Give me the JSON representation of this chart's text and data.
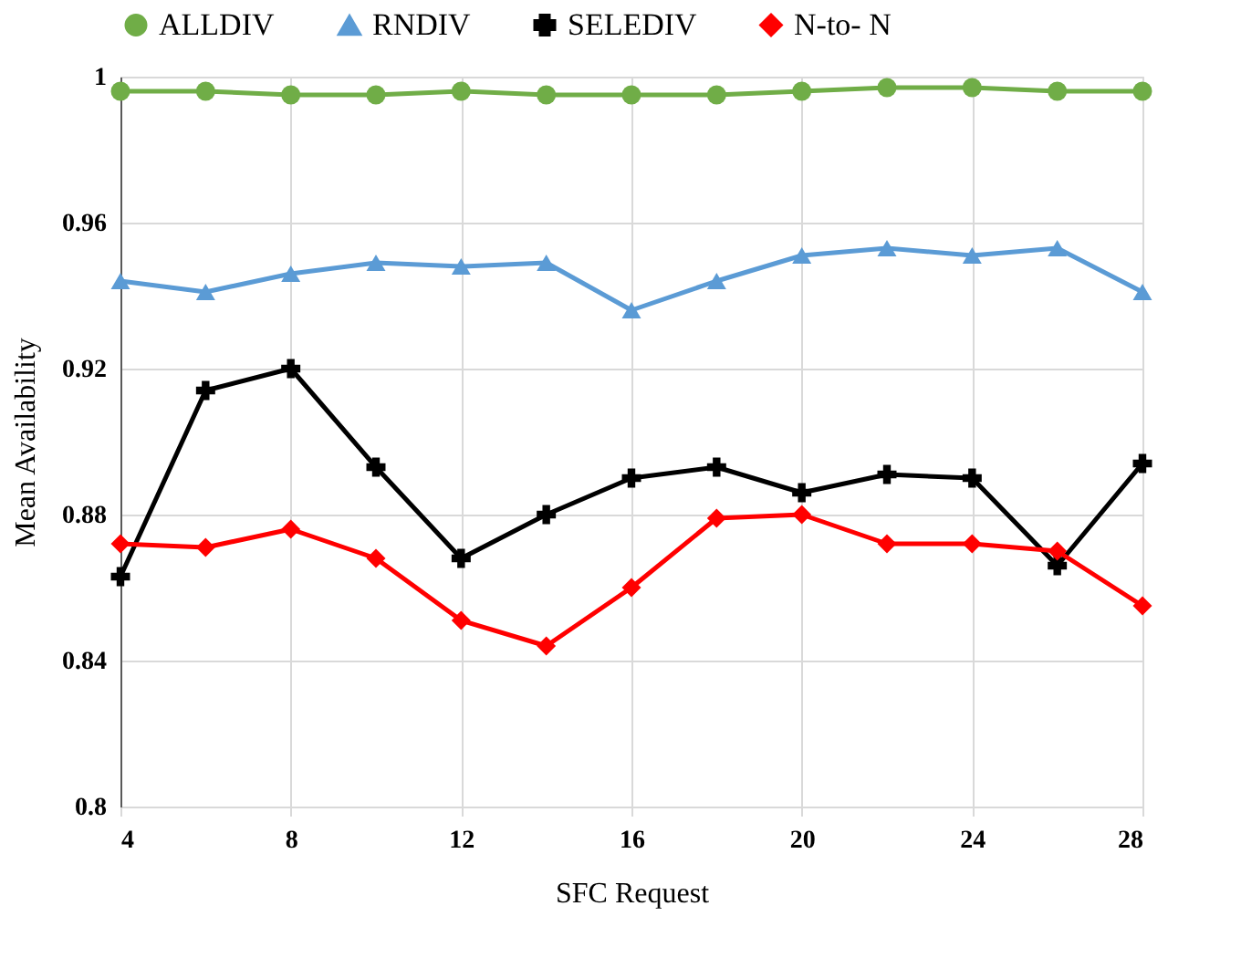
{
  "chart_data": {
    "type": "line",
    "xlabel": "SFC Request",
    "ylabel": "Mean Availability",
    "x": [
      4,
      6,
      8,
      10,
      12,
      14,
      16,
      18,
      20,
      22,
      24,
      26,
      28
    ],
    "series": [
      {
        "name": "ALLDIV",
        "color": "#70ad47",
        "marker": "circle",
        "values": [
          0.996,
          0.996,
          0.995,
          0.995,
          0.996,
          0.995,
          0.995,
          0.995,
          0.996,
          0.997,
          0.997,
          0.996,
          0.996
        ]
      },
      {
        "name": "RNDIV",
        "color": "#5b9bd5",
        "marker": "triangle",
        "values": [
          0.944,
          0.941,
          0.946,
          0.949,
          0.948,
          0.949,
          0.936,
          0.944,
          0.951,
          0.953,
          0.951,
          0.953,
          0.941
        ]
      },
      {
        "name": "SELEDIV",
        "color": "#000000",
        "marker": "cross",
        "values": [
          0.863,
          0.914,
          0.92,
          0.893,
          0.868,
          0.88,
          0.89,
          0.893,
          0.886,
          0.891,
          0.89,
          0.866,
          0.894
        ]
      },
      {
        "name": "N-to- N",
        "color": "#ff0000",
        "marker": "diamond",
        "values": [
          0.872,
          0.871,
          0.876,
          0.868,
          0.851,
          0.844,
          0.86,
          0.879,
          0.88,
          0.872,
          0.872,
          0.87,
          0.855
        ]
      }
    ],
    "xlim": [
      4,
      28
    ],
    "xticks": [
      4,
      8,
      12,
      16,
      20,
      24,
      28
    ],
    "ylim": [
      0.8,
      1
    ],
    "yticks": [
      {
        "value": 0.8,
        "label": "0.8"
      },
      0.84,
      0.88,
      0.92,
      0.96,
      {
        "value": 1,
        "label": "1"
      }
    ],
    "grid": true,
    "legend": "top",
    "line_style": "solid"
  }
}
